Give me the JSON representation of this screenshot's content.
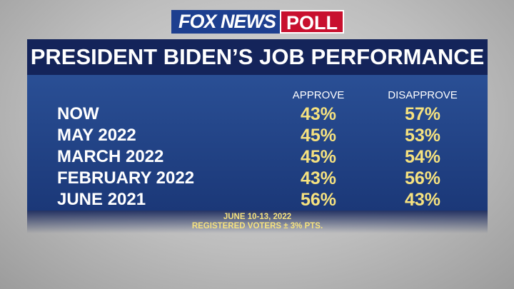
{
  "logo": {
    "brand": "FOX NEWS",
    "product": "POLL"
  },
  "title": "PRESIDENT BIDEN’S JOB PERFORMANCE",
  "table": {
    "columns": [
      "APPROVE",
      "DISAPPROVE"
    ],
    "rows": [
      [
        "NOW",
        "43%",
        "57%"
      ],
      [
        "MAY 2022",
        "45%",
        "53%"
      ],
      [
        "MARCH 2022",
        "45%",
        "54%"
      ],
      [
        "FEBRUARY 2022",
        "43%",
        "56%"
      ],
      [
        "JUNE 2021",
        "56%",
        "43%"
      ]
    ]
  },
  "footnote": [
    "JUNE 10-13, 2022",
    "REGISTERED VOTERS ± 3% PTS."
  ]
}
